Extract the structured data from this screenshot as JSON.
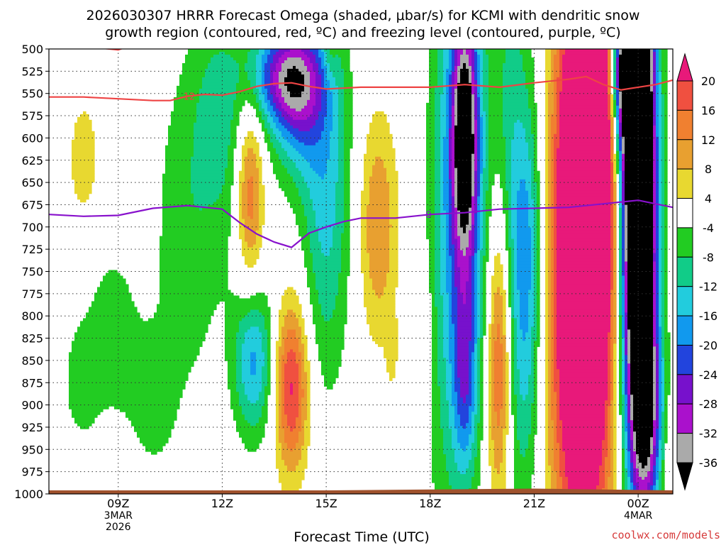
{
  "chart_data": {
    "type": "heatmap",
    "title_line1": "2026030307 HRRR Forecast Omega (shaded, μbar/s) for KCMI with dendritic snow",
    "title_line2": "growth region (contoured, red, ºC) and freezing level (contoured, purple, ºC)",
    "xlabel": "Forecast Time (UTC)",
    "credit": "coolwx.com/models",
    "x_range": [
      7.0,
      25.0
    ],
    "y_range": [
      500,
      1000
    ],
    "y_ticks": [
      500,
      525,
      550,
      575,
      600,
      625,
      650,
      675,
      700,
      725,
      750,
      775,
      800,
      825,
      850,
      875,
      900,
      925,
      950,
      975,
      1000
    ],
    "x_ticks": [
      {
        "x": 9,
        "lines": [
          "09Z",
          "3MAR",
          "2026"
        ]
      },
      {
        "x": 12,
        "lines": [
          "12Z"
        ]
      },
      {
        "x": 15,
        "lines": [
          "15Z"
        ]
      },
      {
        "x": 18,
        "lines": [
          "18Z"
        ]
      },
      {
        "x": 21,
        "lines": [
          "21Z"
        ]
      },
      {
        "x": 24,
        "lines": [
          "00Z",
          "4MAR"
        ]
      }
    ],
    "colorbar": {
      "labels": [
        "20",
        "16",
        "12",
        "8",
        "4",
        "-4",
        "-8",
        "-12",
        "-16",
        "-20",
        "-24",
        "-28",
        "-32",
        "-36"
      ],
      "levels": [
        {
          "min": 20,
          "max": 99,
          "color": "#e8197a"
        },
        {
          "min": 16,
          "max": 20,
          "color": "#f05040"
        },
        {
          "min": 12,
          "max": 16,
          "color": "#f08030"
        },
        {
          "min": 8,
          "max": 12,
          "color": "#e8a030"
        },
        {
          "min": 4,
          "max": 8,
          "color": "#e8d830"
        },
        {
          "min": -4,
          "max": 4,
          "color": "#ffffff"
        },
        {
          "min": -8,
          "max": -4,
          "color": "#22cc22"
        },
        {
          "min": -12,
          "max": -8,
          "color": "#11cc88"
        },
        {
          "min": -16,
          "max": -12,
          "color": "#22ccdd"
        },
        {
          "min": -20,
          "max": -16,
          "color": "#1199ee"
        },
        {
          "min": -24,
          "max": -20,
          "color": "#2244dd"
        },
        {
          "min": -28,
          "max": -24,
          "color": "#7711cc"
        },
        {
          "min": -32,
          "max": -28,
          "color": "#aa11cc"
        },
        {
          "min": -36,
          "max": -32,
          "color": "#aaaaaa"
        },
        {
          "min": -99,
          "max": -36,
          "color": "#000000"
        }
      ]
    },
    "omega_features": [
      {
        "t": 8.0,
        "p": 625,
        "st": 0.35,
        "sp": 55,
        "a": 6.5
      },
      {
        "t": 7.9,
        "p": 875,
        "st": 0.35,
        "sp": 45,
        "a": -6
      },
      {
        "t": 8.8,
        "p": 820,
        "st": 0.6,
        "sp": 80,
        "a": -6
      },
      {
        "t": 10.0,
        "p": 900,
        "st": 0.5,
        "sp": 60,
        "a": -5
      },
      {
        "t": 11.0,
        "p": 700,
        "st": 0.7,
        "sp": 140,
        "a": -7
      },
      {
        "t": 11.8,
        "p": 560,
        "st": 0.5,
        "sp": 80,
        "a": -6
      },
      {
        "t": 12.6,
        "p": 620,
        "st": 0.6,
        "sp": 110,
        "a": -6
      },
      {
        "t": 13.8,
        "p": 530,
        "st": 0.7,
        "sp": 40,
        "a": -24
      },
      {
        "t": 14.2,
        "p": 560,
        "st": 0.5,
        "sp": 60,
        "a": -16
      },
      {
        "t": 15.0,
        "p": 650,
        "st": 0.5,
        "sp": 150,
        "a": -14
      },
      {
        "t": 12.8,
        "p": 660,
        "st": 0.3,
        "sp": 80,
        "a": 19
      },
      {
        "t": 14.0,
        "p": 880,
        "st": 0.35,
        "sp": 70,
        "a": 21
      },
      {
        "t": 12.9,
        "p": 850,
        "st": 0.4,
        "sp": 60,
        "a": -17
      },
      {
        "t": 16.5,
        "p": 700,
        "st": 0.4,
        "sp": 90,
        "a": 12
      },
      {
        "t": 15.1,
        "p": 500,
        "st": 0.15,
        "sp": 25,
        "a": 6
      },
      {
        "t": 17.8,
        "p": 840,
        "st": 0.18,
        "sp": 60,
        "a": 6
      },
      {
        "t": 16.9,
        "p": 840,
        "st": 0.12,
        "sp": 30,
        "a": 5
      },
      {
        "t": 19.0,
        "p": 640,
        "st": 0.5,
        "sp": 200,
        "a": -18
      },
      {
        "t": 19.0,
        "p": 600,
        "st": 0.25,
        "sp": 90,
        "a": -30
      },
      {
        "t": 19.0,
        "p": 870,
        "st": 0.25,
        "sp": 80,
        "a": -15
      },
      {
        "t": 18.4,
        "p": 760,
        "st": 0.4,
        "sp": 300,
        "a": -6
      },
      {
        "t": 20.3,
        "p": 700,
        "st": 0.3,
        "sp": 250,
        "a": -8
      },
      {
        "t": 20.0,
        "p": 850,
        "st": 0.25,
        "sp": 120,
        "a": 20
      },
      {
        "t": 20.8,
        "p": 680,
        "st": 0.3,
        "sp": 90,
        "a": -5
      },
      {
        "t": 21.0,
        "p": 500,
        "st": 0.7,
        "sp": 250,
        "a": -4
      },
      {
        "t": 20.8,
        "p": 800,
        "st": 0.3,
        "sp": 140,
        "a": -13
      },
      {
        "t": 22.4,
        "p": 720,
        "st": 0.65,
        "sp": 250,
        "a": 45
      },
      {
        "t": 22.9,
        "p": 540,
        "st": 0.3,
        "sp": 140,
        "a": 20
      },
      {
        "t": 24.0,
        "p": 650,
        "st": 0.35,
        "sp": 220,
        "a": -70
      },
      {
        "t": 23.6,
        "p": 525,
        "st": 0.35,
        "sp": 60,
        "a": -30
      },
      {
        "t": 24.3,
        "p": 910,
        "st": 0.3,
        "sp": 80,
        "a": -22
      },
      {
        "t": 25.0,
        "p": 960,
        "st": 0.2,
        "sp": 40,
        "a": 6
      }
    ],
    "contour_dendritic": {
      "label": "-12",
      "color": "#ee4444",
      "t": [
        7.0,
        8.0,
        9.0,
        10.0,
        10.5,
        11.0,
        11.5,
        12.0,
        12.5,
        13.0,
        13.5,
        14.0,
        14.5,
        15.0,
        15.5,
        16.0,
        17.0,
        18.0,
        19.0,
        20.0,
        21.0,
        22.0,
        22.5,
        23.0,
        23.5,
        24.0,
        24.5,
        25.0
      ],
      "p": [
        554,
        554,
        556,
        558,
        558,
        553,
        551,
        552,
        548,
        542,
        539,
        538,
        542,
        545,
        544,
        543,
        543,
        543,
        540,
        543,
        538,
        534,
        531,
        540,
        546,
        543,
        540,
        535
      ]
    },
    "contour_dendritic_top": {
      "color": "#ee4444",
      "t": [
        7.0,
        8.0,
        9.0,
        9.5
      ],
      "p": [
        496,
        497,
        501,
        494
      ]
    },
    "contour_freezing": {
      "label": "0",
      "color": "#8811cc",
      "t": [
        7.0,
        8.0,
        9.0,
        10.0,
        11.0,
        12.0,
        12.5,
        13.0,
        13.5,
        14.0,
        14.5,
        15.0,
        15.5,
        16.0,
        17.0,
        18.0,
        19.0,
        20.0,
        21.0,
        22.0,
        23.0,
        24.0,
        25.0
      ],
      "p": [
        686,
        688,
        687,
        679,
        676,
        680,
        695,
        708,
        717,
        723,
        707,
        700,
        694,
        690,
        690,
        686,
        684,
        680,
        679,
        678,
        674,
        670,
        678
      ]
    },
    "ground": {
      "color": "#a0522d",
      "t": [
        7.0,
        15.0,
        18.0,
        21.0,
        25.0
      ],
      "p": [
        996,
        996,
        995,
        994,
        996
      ]
    }
  }
}
